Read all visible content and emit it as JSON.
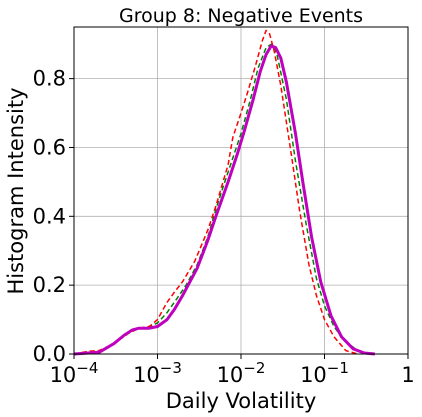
{
  "chart_data": {
    "type": "line",
    "title": "Group 8: Negative Events",
    "xlabel": "Daily Volatility",
    "ylabel": "Histogram Intensity",
    "x_scale": "log",
    "xlim": [
      0.0001,
      1
    ],
    "ylim": [
      0,
      0.95
    ],
    "grid": true,
    "x_ticks": [
      {
        "value": 0.0001,
        "base": "10",
        "exp": "−4"
      },
      {
        "value": 0.001,
        "base": "10",
        "exp": "−3"
      },
      {
        "value": 0.01,
        "base": "10",
        "exp": "−2"
      },
      {
        "value": 0.1,
        "base": "10",
        "exp": "−1"
      },
      {
        "value": 1,
        "base": "1",
        "exp": ""
      }
    ],
    "y_ticks": [
      {
        "value": 0.0,
        "label": "0.0"
      },
      {
        "value": 0.2,
        "label": "0.2"
      },
      {
        "value": 0.4,
        "label": "0.4"
      },
      {
        "value": 0.6,
        "label": "0.6"
      },
      {
        "value": 0.8,
        "label": "0.8"
      }
    ],
    "series": [
      {
        "color": "#008000",
        "style": "dashed",
        "points": [
          [
            0.0001,
            0.0
          ],
          [
            0.00013,
            0.005
          ],
          [
            0.0002,
            0.008
          ],
          [
            0.0003,
            0.03
          ],
          [
            0.00045,
            0.06
          ],
          [
            0.0006,
            0.075
          ],
          [
            0.0008,
            0.08
          ],
          [
            0.001,
            0.09
          ],
          [
            0.0013,
            0.12
          ],
          [
            0.0017,
            0.16
          ],
          [
            0.0022,
            0.2
          ],
          [
            0.003,
            0.26
          ],
          [
            0.004,
            0.34
          ],
          [
            0.005,
            0.42
          ],
          [
            0.006,
            0.48
          ],
          [
            0.008,
            0.57
          ],
          [
            0.01,
            0.64
          ],
          [
            0.013,
            0.74
          ],
          [
            0.016,
            0.83
          ],
          [
            0.02,
            0.89
          ],
          [
            0.023,
            0.9
          ],
          [
            0.027,
            0.87
          ],
          [
            0.035,
            0.74
          ],
          [
            0.045,
            0.56
          ],
          [
            0.06,
            0.38
          ],
          [
            0.08,
            0.22
          ],
          [
            0.1,
            0.14
          ],
          [
            0.13,
            0.08
          ],
          [
            0.17,
            0.04
          ],
          [
            0.25,
            0.01
          ],
          [
            0.35,
            0.0
          ]
        ]
      },
      {
        "color": "#ff0000",
        "style": "dashed",
        "points": [
          [
            0.0001,
            0.0
          ],
          [
            0.00015,
            0.008
          ],
          [
            0.0002,
            0.01
          ],
          [
            0.0003,
            0.03
          ],
          [
            0.00045,
            0.06
          ],
          [
            0.0006,
            0.075
          ],
          [
            0.0008,
            0.08
          ],
          [
            0.001,
            0.1
          ],
          [
            0.0013,
            0.15
          ],
          [
            0.0016,
            0.18
          ],
          [
            0.002,
            0.21
          ],
          [
            0.0028,
            0.27
          ],
          [
            0.004,
            0.36
          ],
          [
            0.005,
            0.43
          ],
          [
            0.007,
            0.55
          ],
          [
            0.008,
            0.63
          ],
          [
            0.01,
            0.7
          ],
          [
            0.012,
            0.76
          ],
          [
            0.015,
            0.84
          ],
          [
            0.018,
            0.91
          ],
          [
            0.02,
            0.94
          ],
          [
            0.022,
            0.93
          ],
          [
            0.025,
            0.88
          ],
          [
            0.03,
            0.78
          ],
          [
            0.04,
            0.58
          ],
          [
            0.05,
            0.42
          ],
          [
            0.065,
            0.26
          ],
          [
            0.08,
            0.17
          ],
          [
            0.1,
            0.1
          ],
          [
            0.13,
            0.05
          ],
          [
            0.18,
            0.01
          ],
          [
            0.25,
            0.0
          ]
        ]
      },
      {
        "color": "#bf00bf",
        "style": "solid",
        "points": [
          [
            0.0001,
            0.0
          ],
          [
            0.0002,
            0.005
          ],
          [
            0.0003,
            0.03
          ],
          [
            0.0004,
            0.055
          ],
          [
            0.0005,
            0.07
          ],
          [
            0.0006,
            0.075
          ],
          [
            0.0008,
            0.075
          ],
          [
            0.001,
            0.08
          ],
          [
            0.0013,
            0.1
          ],
          [
            0.0016,
            0.13
          ],
          [
            0.002,
            0.17
          ],
          [
            0.003,
            0.25
          ],
          [
            0.004,
            0.33
          ],
          [
            0.005,
            0.4
          ],
          [
            0.007,
            0.5
          ],
          [
            0.009,
            0.58
          ],
          [
            0.011,
            0.65
          ],
          [
            0.014,
            0.74
          ],
          [
            0.017,
            0.82
          ],
          [
            0.02,
            0.87
          ],
          [
            0.023,
            0.895
          ],
          [
            0.026,
            0.89
          ],
          [
            0.03,
            0.86
          ],
          [
            0.035,
            0.79
          ],
          [
            0.045,
            0.64
          ],
          [
            0.055,
            0.5
          ],
          [
            0.07,
            0.34
          ],
          [
            0.09,
            0.21
          ],
          [
            0.12,
            0.11
          ],
          [
            0.16,
            0.05
          ],
          [
            0.22,
            0.015
          ],
          [
            0.3,
            0.003
          ],
          [
            0.4,
            0.0
          ]
        ]
      }
    ]
  }
}
